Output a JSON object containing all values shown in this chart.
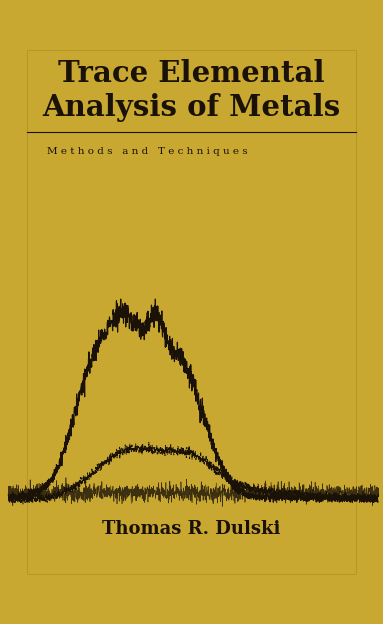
{
  "background_color": "#C9A832",
  "border_color": "#b8962a",
  "title_line1": "Trace Elemental",
  "title_line2": "Analysis of Metals",
  "subtitle": "M e t h o d s   a n d   T e c h n i q u e s",
  "author": "Thomas R. Dulski",
  "title_color": "#1a1208",
  "subtitle_color": "#1a1208",
  "author_color": "#1a1208",
  "line_color": "#1a1208",
  "curve_color": "#1a1208",
  "fig_width": 3.83,
  "fig_height": 6.24,
  "dpi": 100
}
